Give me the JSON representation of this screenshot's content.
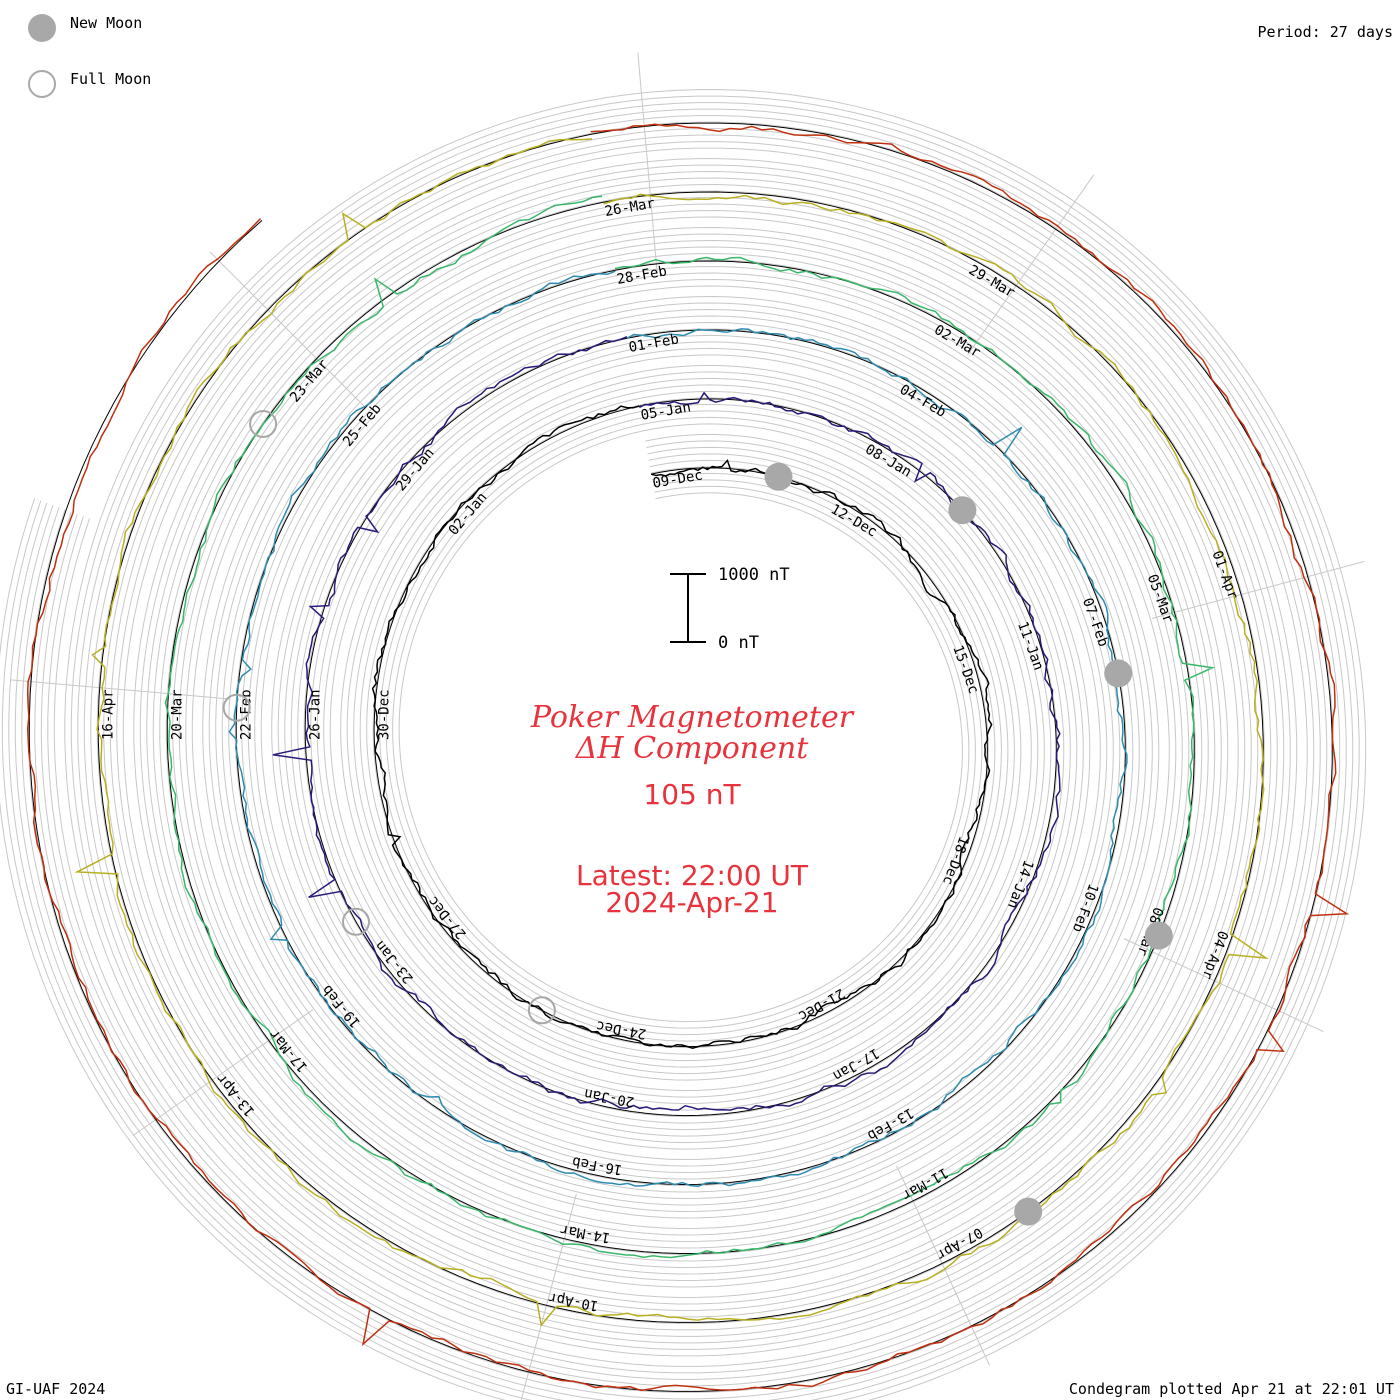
{
  "header": {
    "legend_new_moon": "New Moon",
    "legend_full_moon": "Full Moon",
    "period": "Period: 27 days"
  },
  "center": {
    "title_line1": "Poker Magnetometer",
    "title_line2": "ΔH Component",
    "value": "105 nT",
    "latest": "Latest: 22:00 UT",
    "date": "2024-Apr-21"
  },
  "scale_bar": {
    "top_label": "1000 nT",
    "bottom_label": "0 nT"
  },
  "footer": {
    "left": "GI-UAF 2024",
    "right": "Condegram plotted Apr 21 at 22:01 UT"
  },
  "colors": {
    "new_moon": "#a8a8a8",
    "full_moon": "#a8a8a8",
    "title": "#e8323c",
    "grid": "#c8c8c8"
  },
  "chart_data": {
    "type": "line",
    "subtype": "spiral condegram",
    "period_days": 27,
    "laps": [
      {
        "color": "#000000",
        "labels": [
          "09-Dec",
          "12-Dec",
          "15-Dec",
          "18-Dec",
          "21-Dec",
          "24-Dec",
          "27-Dec",
          "30-Dec",
          "02-Jan"
        ]
      },
      {
        "color": "#2a1a7a",
        "labels": [
          "05-Jan",
          "08-Jan",
          "11-Jan",
          "14-Jan",
          "17-Jan",
          "20-Jan",
          "23-Jan",
          "26-Jan",
          "29-Jan"
        ]
      },
      {
        "color": "#2f8cb0",
        "labels": [
          "01-Feb",
          "04-Feb",
          "07-Feb",
          "10-Feb",
          "13-Feb",
          "16-Feb",
          "19-Feb",
          "22-Feb",
          "25-Feb"
        ]
      },
      {
        "color": "#3ab86a",
        "labels": [
          "28-Feb",
          "02-Mar",
          "05-Mar",
          "08-Mar",
          "11-Mar",
          "14-Mar",
          "17-Mar",
          "20-Mar",
          "23-Mar"
        ]
      },
      {
        "color": "#b8b020",
        "labels": [
          "26-Mar",
          "29-Mar",
          "01-Apr",
          "04-Apr",
          "07-Apr",
          "10-Apr",
          "13-Apr",
          "16-Apr"
        ]
      },
      {
        "color": "#c03010",
        "labels": []
      }
    ],
    "new_moon_dates": [
      "11-Dec",
      "11-Jan",
      "10-Feb",
      "10-Mar",
      "08-Apr"
    ],
    "full_moon_dates": [
      "27-Dec",
      "25-Jan",
      "24-Feb",
      "25-Mar"
    ]
  }
}
